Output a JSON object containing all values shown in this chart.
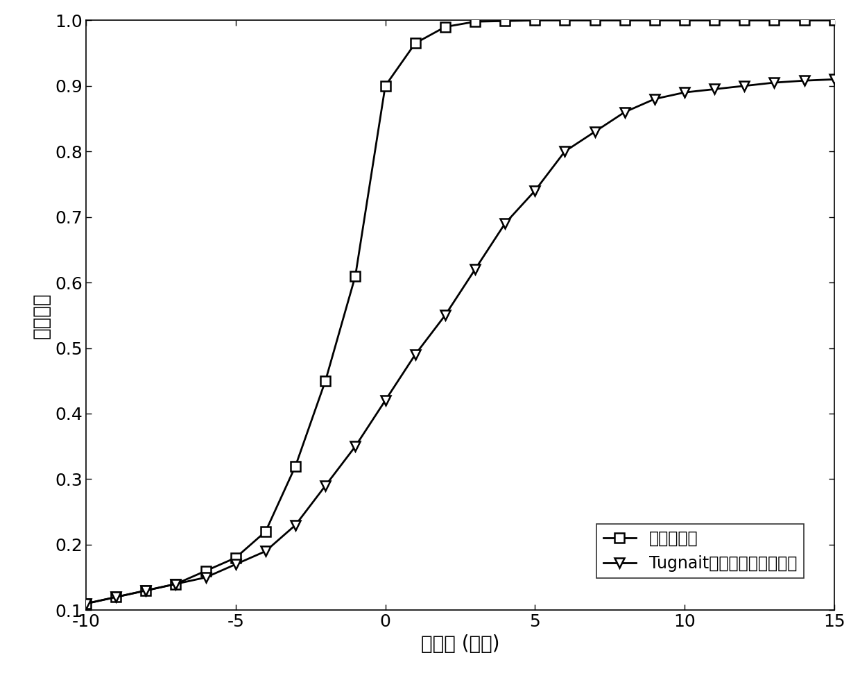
{
  "series1_label": "本发明方法",
  "series2_label": "Tugnait提出的频谱感知方法",
  "series1_x": [
    -10,
    -9,
    -8,
    -7,
    -6,
    -5,
    -4,
    -3,
    -2,
    -1,
    0,
    1,
    2,
    3,
    4,
    5,
    6,
    7,
    8,
    9,
    10,
    11,
    12,
    13,
    14,
    15
  ],
  "series1_y": [
    0.11,
    0.12,
    0.13,
    0.14,
    0.16,
    0.18,
    0.22,
    0.32,
    0.45,
    0.61,
    0.9,
    0.965,
    0.99,
    0.998,
    0.999,
    1.0,
    1.0,
    1.0,
    1.0,
    1.0,
    1.0,
    1.0,
    1.0,
    1.0,
    1.0,
    1.0
  ],
  "series2_x": [
    -10,
    -9,
    -8,
    -7,
    -6,
    -5,
    -4,
    -3,
    -2,
    -1,
    0,
    1,
    2,
    3,
    4,
    5,
    6,
    7,
    8,
    9,
    10,
    11,
    12,
    13,
    14,
    15
  ],
  "series2_y": [
    0.11,
    0.12,
    0.13,
    0.14,
    0.15,
    0.17,
    0.19,
    0.23,
    0.29,
    0.35,
    0.42,
    0.49,
    0.55,
    0.62,
    0.69,
    0.74,
    0.8,
    0.83,
    0.86,
    0.88,
    0.89,
    0.895,
    0.9,
    0.905,
    0.908,
    0.91
  ],
  "xlabel": "信噪比 (分贝)",
  "ylabel": "检测概率",
  "xlim": [
    -10,
    15
  ],
  "ylim": [
    0.1,
    1.0
  ],
  "xticks": [
    -10,
    -5,
    0,
    5,
    10,
    15
  ],
  "yticks": [
    0.1,
    0.2,
    0.3,
    0.4,
    0.5,
    0.6,
    0.7,
    0.8,
    0.9,
    1.0
  ],
  "line_color": "#000000",
  "marker1": "s",
  "marker2": "v",
  "markersize": 10,
  "linewidth": 2.0,
  "font_size_label": 20,
  "font_size_tick": 18,
  "font_size_legend": 17
}
